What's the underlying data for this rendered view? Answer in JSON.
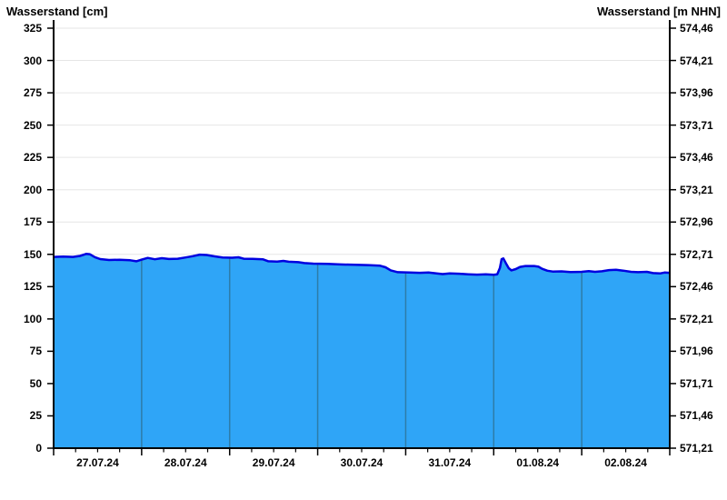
{
  "page": {
    "background": "#ffffff"
  },
  "titles": {
    "left": "Wasserstand [cm]",
    "right": "Wasserstand [m NHN]"
  },
  "chart_data": {
    "type": "area",
    "title": "Wasserstand",
    "xlabel": "",
    "ylabel_left": "Wasserstand [cm]",
    "ylabel_right": "Wasserstand [m NHN]",
    "ylim_cm": [
      0,
      331.5
    ],
    "xlim_days": [
      0,
      7
    ],
    "grid": "horizontal",
    "legend_position": "none",
    "y_axis_left": {
      "tick_values_cm": [
        0,
        25,
        50,
        75,
        100,
        125,
        150,
        175,
        200,
        225,
        250,
        275,
        300,
        325
      ],
      "tick_labels": [
        "0",
        "25",
        "50",
        "75",
        "100",
        "125",
        "150",
        "175",
        "200",
        "225",
        "250",
        "275",
        "300",
        "325"
      ]
    },
    "y_axis_right": {
      "tick_labels": [
        "571,21",
        "571,46",
        "571,71",
        "571,96",
        "572,21",
        "572,46",
        "572,71",
        "572,96",
        "573,21",
        "573,46",
        "573,71",
        "573,96",
        "574,21",
        "574,46"
      ]
    },
    "x_axis": {
      "day_labels": [
        "27.07.24",
        "28.07.24",
        "29.07.24",
        "30.07.24",
        "31.07.24",
        "01.08.24",
        "02.08.24"
      ],
      "days": 7,
      "minor_ticks_per_day": 4,
      "day_separator_positions": [
        1,
        2,
        3,
        4,
        5,
        6
      ]
    },
    "series": [
      {
        "name": "Wasserstand",
        "unit": "cm",
        "points_day_cm": [
          [
            0.0,
            148.0
          ],
          [
            0.11,
            148.3
          ],
          [
            0.22,
            148.0
          ],
          [
            0.3,
            148.8
          ],
          [
            0.37,
            150.3
          ],
          [
            0.41,
            150.1
          ],
          [
            0.47,
            147.8
          ],
          [
            0.53,
            146.3
          ],
          [
            0.63,
            145.6
          ],
          [
            0.75,
            145.8
          ],
          [
            0.87,
            145.4
          ],
          [
            0.94,
            144.6
          ],
          [
            1.0,
            145.9
          ],
          [
            1.07,
            147.2
          ],
          [
            1.15,
            146.2
          ],
          [
            1.23,
            147.0
          ],
          [
            1.31,
            146.4
          ],
          [
            1.41,
            146.6
          ],
          [
            1.5,
            147.6
          ],
          [
            1.58,
            148.6
          ],
          [
            1.66,
            149.8
          ],
          [
            1.74,
            149.5
          ],
          [
            1.83,
            148.4
          ],
          [
            1.92,
            147.6
          ],
          [
            2.03,
            147.4
          ],
          [
            2.1,
            147.7
          ],
          [
            2.16,
            146.6
          ],
          [
            2.26,
            146.5
          ],
          [
            2.38,
            146.1
          ],
          [
            2.44,
            144.6
          ],
          [
            2.54,
            144.4
          ],
          [
            2.61,
            144.9
          ],
          [
            2.67,
            144.3
          ],
          [
            2.78,
            143.9
          ],
          [
            2.85,
            143.2
          ],
          [
            2.95,
            142.8
          ],
          [
            3.11,
            142.6
          ],
          [
            3.26,
            142.2
          ],
          [
            3.42,
            141.9
          ],
          [
            3.57,
            141.7
          ],
          [
            3.71,
            141.2
          ],
          [
            3.77,
            140.0
          ],
          [
            3.83,
            137.6
          ],
          [
            3.91,
            136.2
          ],
          [
            4.04,
            135.9
          ],
          [
            4.16,
            135.7
          ],
          [
            4.26,
            135.9
          ],
          [
            4.35,
            135.3
          ],
          [
            4.42,
            134.7
          ],
          [
            4.5,
            135.2
          ],
          [
            4.61,
            135.0
          ],
          [
            4.71,
            134.6
          ],
          [
            4.81,
            134.3
          ],
          [
            4.91,
            134.5
          ],
          [
            5.0,
            134.2
          ],
          [
            5.04,
            134.6
          ],
          [
            5.07,
            139.5
          ],
          [
            5.09,
            146.3
          ],
          [
            5.11,
            146.8
          ],
          [
            5.14,
            143.0
          ],
          [
            5.17,
            139.3
          ],
          [
            5.2,
            137.6
          ],
          [
            5.25,
            138.6
          ],
          [
            5.3,
            140.3
          ],
          [
            5.36,
            141.0
          ],
          [
            5.46,
            141.0
          ],
          [
            5.51,
            140.4
          ],
          [
            5.55,
            138.8
          ],
          [
            5.61,
            137.3
          ],
          [
            5.67,
            136.7
          ],
          [
            5.77,
            136.8
          ],
          [
            5.87,
            136.3
          ],
          [
            6.0,
            136.5
          ],
          [
            6.08,
            137.0
          ],
          [
            6.15,
            136.5
          ],
          [
            6.23,
            136.9
          ],
          [
            6.31,
            137.8
          ],
          [
            6.39,
            138.0
          ],
          [
            6.47,
            137.4
          ],
          [
            6.56,
            136.5
          ],
          [
            6.64,
            136.2
          ],
          [
            6.74,
            136.5
          ],
          [
            6.81,
            135.5
          ],
          [
            6.89,
            135.2
          ],
          [
            6.94,
            135.9
          ],
          [
            7.0,
            135.7
          ]
        ]
      }
    ],
    "right_axis_relation": "m_NHN = 571.21 + cm / 100",
    "colors": {
      "area_fill": "#2FA5F7",
      "level_line": "#0000E0",
      "day_separator": "#2E7CA8",
      "gridline": "#E6E6E6",
      "axis": "#000000",
      "text": "#000000"
    }
  }
}
